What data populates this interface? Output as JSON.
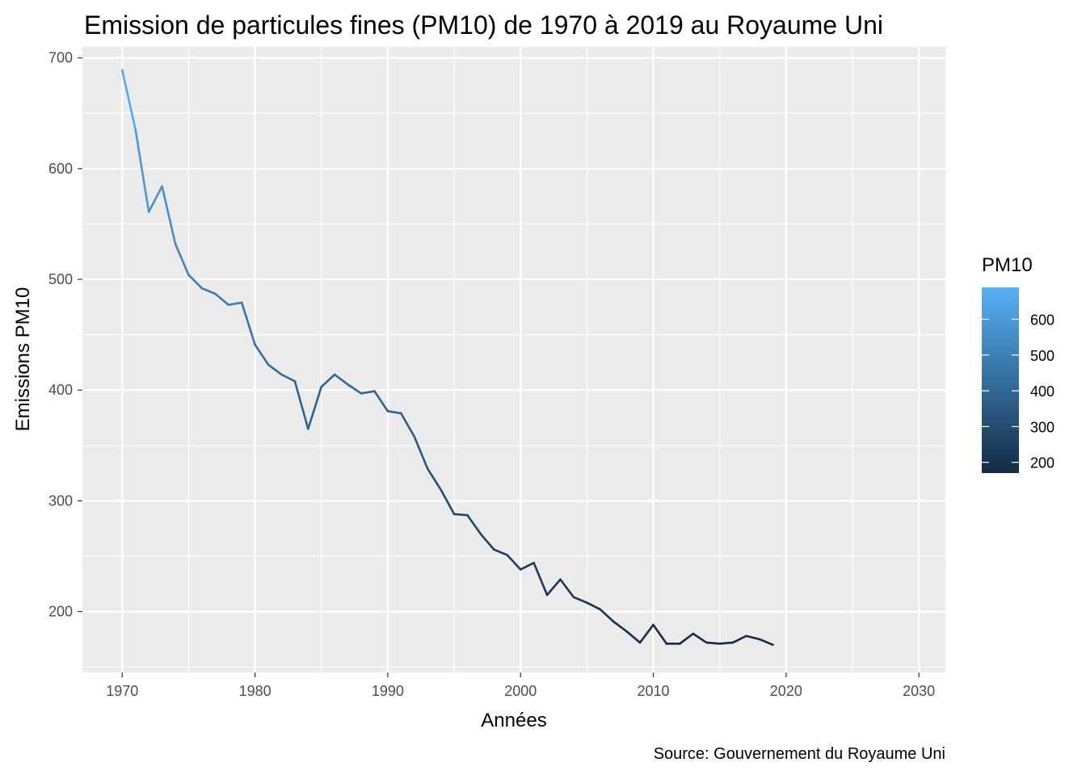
{
  "chart_data": {
    "type": "line",
    "title": "Emission de particules fines (PM10) de 1970 à 2019 au Royaume Uni",
    "xlabel": "Années",
    "ylabel": "Emissions PM10",
    "caption": "Source: Gouvernement du Royaume Uni",
    "xlim": [
      1967,
      2032
    ],
    "ylim": [
      145,
      710
    ],
    "x_ticks": [
      1970,
      1980,
      1990,
      2000,
      2010,
      2020,
      2030
    ],
    "y_ticks": [
      200,
      300,
      400,
      500,
      600,
      700
    ],
    "grid": true,
    "legend": {
      "title": "PM10",
      "placement": "right",
      "ticks": [
        200,
        300,
        400,
        500,
        600
      ],
      "color_low": "#132B43",
      "color_high": "#56B1F7",
      "range": [
        170,
        689
      ]
    },
    "x": [
      1970,
      1971,
      1972,
      1973,
      1974,
      1975,
      1976,
      1977,
      1978,
      1979,
      1980,
      1981,
      1982,
      1983,
      1984,
      1985,
      1986,
      1987,
      1988,
      1989,
      1990,
      1991,
      1992,
      1993,
      1994,
      1995,
      1996,
      1997,
      1998,
      1999,
      2000,
      2001,
      2002,
      2003,
      2004,
      2005,
      2006,
      2007,
      2008,
      2009,
      2010,
      2011,
      2012,
      2013,
      2014,
      2015,
      2016,
      2017,
      2018,
      2019
    ],
    "y": [
      689,
      635,
      561,
      584,
      532,
      504,
      492,
      487,
      477,
      479,
      441,
      423,
      414,
      408,
      365,
      403,
      414,
      405,
      397,
      399,
      381,
      379,
      358,
      329,
      310,
      288,
      287,
      270,
      256,
      251,
      238,
      244,
      215,
      229,
      213,
      208,
      202,
      191,
      182,
      172,
      188,
      171,
      171,
      180,
      172,
      171,
      172,
      178,
      175,
      170
    ]
  }
}
